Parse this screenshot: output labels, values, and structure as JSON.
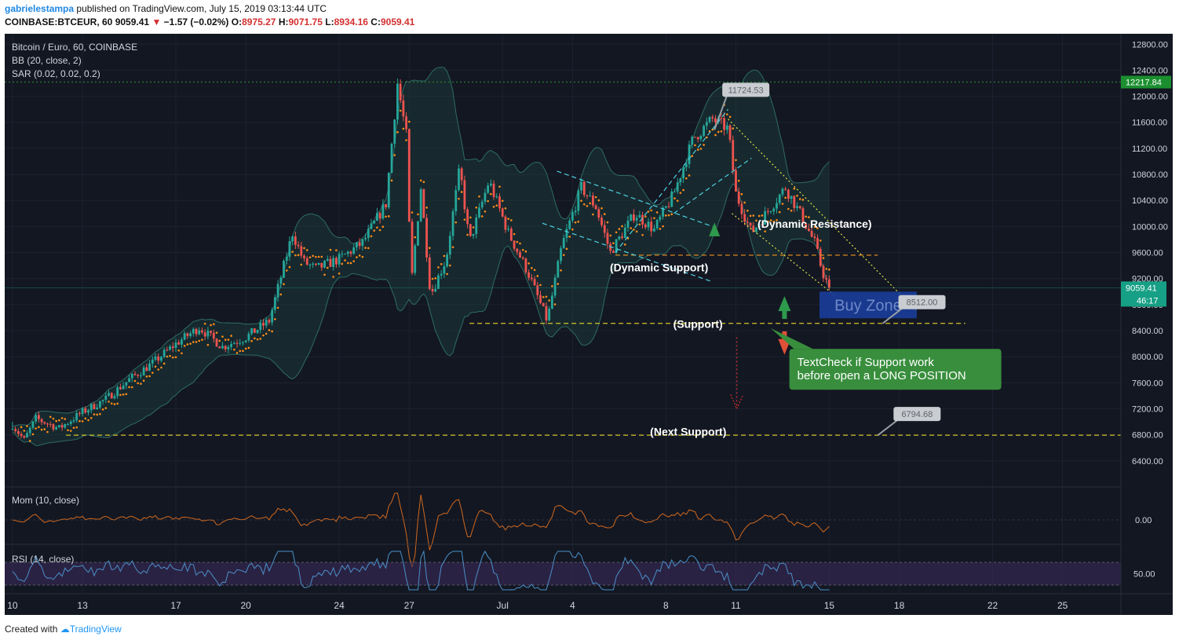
{
  "header": {
    "user": "gabrielestampa",
    "published": "published on TradingView.com, July 15, 2019 03:13:44 UTC",
    "symbol": "COINBASE:BTCEUR, 60",
    "last": "9059.41",
    "change_arrow": "▼",
    "change": "−1.57 (−0.02%)",
    "o_label": "O:",
    "o": "8975.27",
    "h_label": "H:",
    "h": "9071.75",
    "l_label": "L:",
    "l": "8934.16",
    "c_label": "C:",
    "c": "9059.41"
  },
  "legend": {
    "title": "Bitcoin / Euro, 60, COINBASE",
    "bb": "BB (20, close, 2)",
    "sar": "SAR (0.02, 0.02, 0.2)",
    "mom": "Mom (10, close)",
    "rsi": "RSI (14, close)"
  },
  "footer": {
    "created": "Created with",
    "brand": "TradingView"
  },
  "colors": {
    "bg": "#131722",
    "up": "#26a69a",
    "down": "#ef5350",
    "sar": "#ff8c1a",
    "bb": "#2e6b63",
    "mom": "#d2691e",
    "rsi": "#4a90c8",
    "rsi_band": "#3b2a5a",
    "annotation_green": "#388e3c",
    "buy_zone": "#1a3fa0"
  },
  "chart_data": {
    "type": "candlestick",
    "price_axis": {
      "ticks": [
        6400,
        6800,
        7200,
        7600,
        8000,
        8400,
        8800,
        9200,
        9600,
        10000,
        10400,
        10800,
        11200,
        11600,
        12000,
        12400,
        12800
      ],
      "tick_labels": [
        "6400.00",
        "6800.00",
        "7200.00",
        "7600.00",
        "8000.00",
        "8400.00",
        "8800.00",
        "9200.00",
        "9600.00",
        "10000.00",
        "10400.00",
        "10800.00",
        "11200.00",
        "11600.00",
        "12000.00",
        "12400.00",
        "12800.00"
      ],
      "ylim": [
        6000,
        12960
      ]
    },
    "time_axis": {
      "tick_labels": [
        "10",
        "13",
        "17",
        "20",
        "24",
        "27",
        "Jul",
        "4",
        "8",
        "11",
        "15",
        "18",
        "22",
        "25"
      ],
      "tick_hours": [
        0,
        72,
        168,
        240,
        336,
        408,
        504,
        576,
        672,
        744,
        840,
        912,
        1008,
        1080
      ],
      "xlim_hours": [
        -8,
        1140
      ]
    },
    "price_keypoints": [
      [
        0,
        6950
      ],
      [
        12,
        6720
      ],
      [
        24,
        7050
      ],
      [
        48,
        6900
      ],
      [
        72,
        7150
      ],
      [
        96,
        7350
      ],
      [
        120,
        7650
      ],
      [
        144,
        7900
      ],
      [
        168,
        8200
      ],
      [
        192,
        8450
      ],
      [
        216,
        8150
      ],
      [
        240,
        8300
      ],
      [
        264,
        8550
      ],
      [
        288,
        9900
      ],
      [
        300,
        9450
      ],
      [
        312,
        9350
      ],
      [
        336,
        9500
      ],
      [
        360,
        9750
      ],
      [
        384,
        10350
      ],
      [
        396,
        12200
      ],
      [
        405,
        11400
      ],
      [
        410,
        9100
      ],
      [
        420,
        10600
      ],
      [
        430,
        8950
      ],
      [
        446,
        9500
      ],
      [
        460,
        10900
      ],
      [
        470,
        9750
      ],
      [
        490,
        10700
      ],
      [
        510,
        9900
      ],
      [
        530,
        9300
      ],
      [
        550,
        8550
      ],
      [
        565,
        9700
      ],
      [
        585,
        10600
      ],
      [
        600,
        10300
      ],
      [
        615,
        9600
      ],
      [
        640,
        10200
      ],
      [
        660,
        9950
      ],
      [
        680,
        10500
      ],
      [
        700,
        11350
      ],
      [
        720,
        11650
      ],
      [
        736,
        11500
      ],
      [
        744,
        10500
      ],
      [
        760,
        9900
      ],
      [
        775,
        10200
      ],
      [
        795,
        10600
      ],
      [
        810,
        10200
      ],
      [
        825,
        9750
      ],
      [
        833,
        9300
      ],
      [
        840,
        9060
      ]
    ],
    "last_price": 9059.41,
    "high_marker": 12217.84,
    "countdown": "46:17",
    "overlays": {
      "horizontal_lines": [
        {
          "price": 12217.84,
          "style": "dotted",
          "color": "#2e7d32"
        },
        {
          "price": 8512,
          "style": "dashed",
          "color": "#d4c62a"
        },
        {
          "price": 6794.68,
          "style": "dashed",
          "color": "#d4c62a"
        },
        {
          "price": 9560,
          "style": "dashed",
          "color": "#e08a1e"
        }
      ],
      "callouts": [
        {
          "label": "11724.53",
          "hour": 730,
          "price": 11724.53
        },
        {
          "label": "8512.00",
          "hour": 895,
          "price": 8512
        },
        {
          "label": "6794.68",
          "hour": 890,
          "price": 6794.68
        }
      ],
      "texts": [
        {
          "label": "(Dynamic Resistance)",
          "hour": 825,
          "price": 9980
        },
        {
          "label": "(Dynamic Support)",
          "hour": 665,
          "price": 9310
        },
        {
          "label": "(Support)",
          "hour": 705,
          "price": 8440
        },
        {
          "label": "(Next Support)",
          "hour": 695,
          "price": 6790
        }
      ],
      "buy_zone": {
        "label": "Buy Zone",
        "hour_from": 830,
        "hour_to": 930,
        "price_from": 8590,
        "price_to": 9000
      },
      "note": {
        "label": "TextCheck if Support work before open a LONG POSITION",
        "line1": "TextCheck if Support work",
        "line2": "before open a LONG POSITION"
      }
    },
    "mom_axis": {
      "tick_label": "0.00"
    },
    "rsi_axis": {
      "tick_label": "50.00"
    }
  }
}
